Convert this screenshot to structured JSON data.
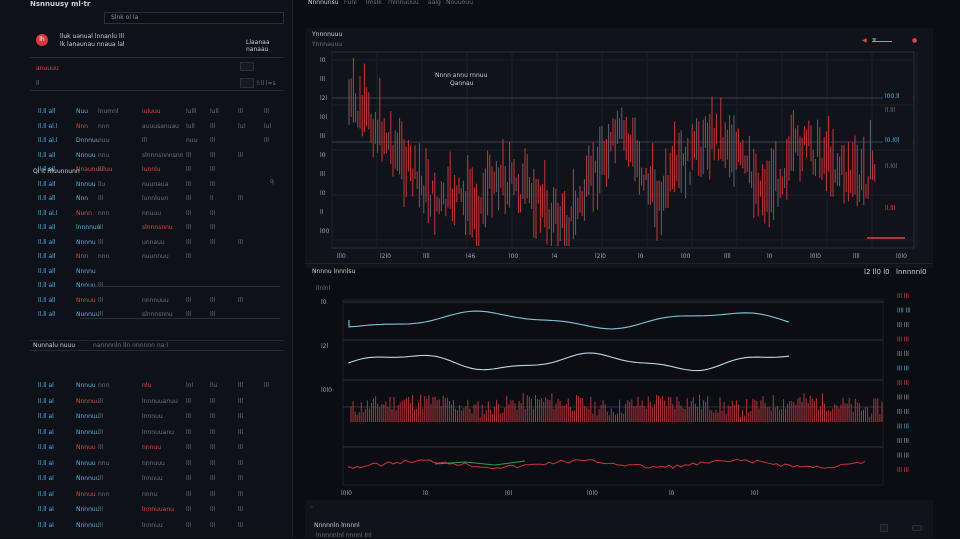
{
  "app": {
    "title": "Nsnnuusy ml·tr",
    "search_placeholder": "Slnk ol la",
    "logo_text": "lh"
  },
  "top_tabs": [
    "Nnnnunsu",
    "l·unl",
    "lmslk",
    "rnlnnuuuu",
    "aalg",
    "Nouuouu"
  ],
  "left_panel": {
    "account_line1": "lluk uanual lnnanlu lll",
    "account_line2": "lk lanaunau nnaua lal",
    "account_right": "Llaanaa nanaau",
    "filter_label": "anuuuu",
    "filter_value": "ll",
    "count_label": "l:ll l=s",
    "section1_header": "Ql lt  Rluunnunn",
    "section1_right": "q",
    "section2_header": "Nunnalu nuuu",
    "section2_right": "nannnnln lln nnnnnn na:l"
  },
  "left_rows_top": [
    {
      "a": "ll.ll all",
      "b": "Nuu",
      "c": "lnumnl",
      "d": "iuluuu",
      "e": "lulll",
      "f": "lull",
      "g": "lll",
      "h": "lll",
      "hi": true
    },
    {
      "a": "ll.ll al.l",
      "b": "Nnn",
      "c": "nnn",
      "d": "auuusanuau",
      "e": "lull",
      "f": "lll",
      "g": "lul",
      "h": "lul"
    },
    {
      "a": "ll.ll al.l",
      "b": "Dnnnuu",
      "c": "nuu",
      "d": "lll",
      "e": "nuu",
      "f": "lll",
      "g": "",
      "h": "lll"
    },
    {
      "a": "ll.ll all",
      "b": "Nnnuu",
      "c": "nnu",
      "d": "slnnnsnnnsnn",
      "e": "lll",
      "f": "lll",
      "g": "lll",
      "h": ""
    },
    {
      "a": "ll.ll all",
      "b": "Nnaunuuluu",
      "c": "lll",
      "d": "lunnlu",
      "e": "lll",
      "f": "lll",
      "g": "",
      "h": ""
    },
    {
      "a": "ll.ll all",
      "b": "Nnnuu",
      "c": "llu",
      "d": "nuunaua",
      "e": "lll",
      "f": "lll",
      "g": "",
      "h": ""
    },
    {
      "a": "ll.ll all",
      "b": "Nnn",
      "c": "lll",
      "d": "lunnluun",
      "e": "lll",
      "f": "ll",
      "g": "lll",
      "h": ""
    },
    {
      "a": "ll.ll al.l",
      "b": "Nunn",
      "c": "nnn",
      "d": "nnuuu",
      "e": "lll",
      "f": "lll",
      "g": "",
      "h": ""
    },
    {
      "a": "ll.ll all",
      "b": "lnnnnuu",
      "c": "lll",
      "d": "slnnnsnnu",
      "e": "lll",
      "f": "lll",
      "g": "",
      "h": ""
    },
    {
      "a": "ll.ll all",
      "b": "Nnnnu",
      "c": "lll",
      "d": "unnauu",
      "e": "lll",
      "f": "lll",
      "g": "lll",
      "h": ""
    },
    {
      "a": "ll.ll all",
      "b": "Nnn",
      "c": "nnn",
      "d": "nuunnuu",
      "e": "lll",
      "f": "",
      "g": "",
      "h": ""
    },
    {
      "a": "ll.ll all",
      "b": "Nnnnu",
      "c": "",
      "d": "",
      "e": "",
      "f": "",
      "g": "",
      "h": ""
    },
    {
      "a": "ll.ll all",
      "b": "Nnnuu",
      "c": "lll",
      "d": "",
      "e": "",
      "f": "",
      "g": "",
      "h": ""
    },
    {
      "a": "ll.ll all",
      "b": "Nnnuu",
      "c": "lll",
      "d": "nnnnuuu",
      "e": "lll",
      "f": "lll",
      "g": "lll",
      "h": ""
    },
    {
      "a": "ll.ll all",
      "b": "Nunnuu",
      "c": "lll",
      "d": "slnnnsnnu",
      "e": "lll",
      "f": "lll",
      "g": "",
      "h": ""
    }
  ],
  "left_rows_bottom": [
    {
      "a": "ll.ll al",
      "b": "Nnnuu",
      "c": "nnn",
      "d": "nlu",
      "e": "lnl",
      "f": "llu",
      "g": "lll",
      "h": "lll"
    },
    {
      "a": "ll.ll al",
      "b": "Nnnnuu",
      "c": "lll",
      "d": "lnnnuuanuu",
      "e": "lll",
      "f": "lll",
      "g": "lll",
      "h": ""
    },
    {
      "a": "ll.ll al",
      "b": "Nnnnuu",
      "c": "lll",
      "d": "lnnnuu",
      "e": "lll",
      "f": "lll",
      "g": "lll",
      "h": ""
    },
    {
      "a": "ll.ll al",
      "b": "Nnnnuu",
      "c": "lll",
      "d": "lnnnuuanu",
      "e": "lll",
      "f": "lll",
      "g": "lll",
      "h": ""
    },
    {
      "a": "ll.ll al",
      "b": "Nnnuu",
      "c": "lll",
      "d": "nnnuu",
      "e": "lll",
      "f": "lll",
      "g": "lll",
      "h": ""
    },
    {
      "a": "ll.ll al",
      "b": "Nnnuu",
      "c": "nnu",
      "d": "nnnuuu",
      "e": "lll",
      "f": "lll",
      "g": "lll",
      "h": ""
    },
    {
      "a": "ll.ll al",
      "b": "Nnnnuu",
      "c": "lll",
      "d": "lnnnuu",
      "e": "lll",
      "f": "lll",
      "g": "lll",
      "h": ""
    },
    {
      "a": "ll.ll al",
      "b": "Nnnuu",
      "c": "nnn",
      "d": "nnnu",
      "e": "lll",
      "f": "lll",
      "g": "lll",
      "h": ""
    },
    {
      "a": "ll.ll al",
      "b": "Nnnnuu",
      "c": "lll",
      "d": "lnnnuuanu",
      "e": "lll",
      "f": "lll",
      "g": "lll",
      "h": ""
    },
    {
      "a": "ll.ll al",
      "b": "Nnnnuu",
      "c": "lll",
      "d": "lnnnuu",
      "e": "lll",
      "f": "lll",
      "g": "lll",
      "h": ""
    }
  ],
  "main_chart": {
    "header": "Ynnnnuuu",
    "sub": "Ynnnauuu",
    "legend_line1": "Nnnn annu rnnuu",
    "legend_line2": "Qannau",
    "right_controls": [
      "◀",
      "▼",
      "●"
    ],
    "x_ticks": [
      "lll0",
      "l2l0",
      "llll",
      "l46",
      "l00",
      "l4",
      "l2l0",
      "l0",
      "l00",
      "llll",
      "l0",
      "l0l0",
      "llll",
      "l0l0"
    ],
    "y_ticks": [
      "l0",
      "lll",
      "l2l",
      "l0l",
      "lll",
      "l0",
      "lll",
      "l0",
      "ll",
      "l00"
    ],
    "level_labels": [
      "l00.ll",
      "ll.lll",
      "l0.l0l",
      "ll.l0l",
      "ll.lll"
    ],
    "level_colors": [
      "#4fb3e8",
      "#6a737d",
      "#4fb3e8",
      "#6a737d",
      "#e0454a"
    ]
  },
  "indicator_panel": {
    "header": "Nnnnu lnnnlsu",
    "right": "l2 ll0 l0",
    "right2": "lnnnnnl0",
    "sub": "llnlnl",
    "right_values": [
      "lll lll",
      "llll lll",
      "lll lll",
      "lll lll",
      "lll lll",
      "lll lll",
      "lll lll",
      "lll lll",
      "lll lll",
      "lll lll",
      "lll lll",
      "lll lll",
      "lll lll"
    ],
    "y_ticks": [
      "l0",
      "l2l",
      "l0l0"
    ],
    "x_ticks": [
      "l0l0",
      "l0",
      "l0l",
      "l0l0",
      "l0",
      "l0l"
    ]
  },
  "bottom_panel": {
    "header": "Nnnnnln lnnnnl",
    "sub": "lnnnnnlnl nnnnl lnl"
  },
  "colors": {
    "accent_red": "#e0454a",
    "accent_blue": "#4fb3e8",
    "bg": "#0b0d12",
    "panel": "#10131a",
    "grid": "#222834"
  }
}
